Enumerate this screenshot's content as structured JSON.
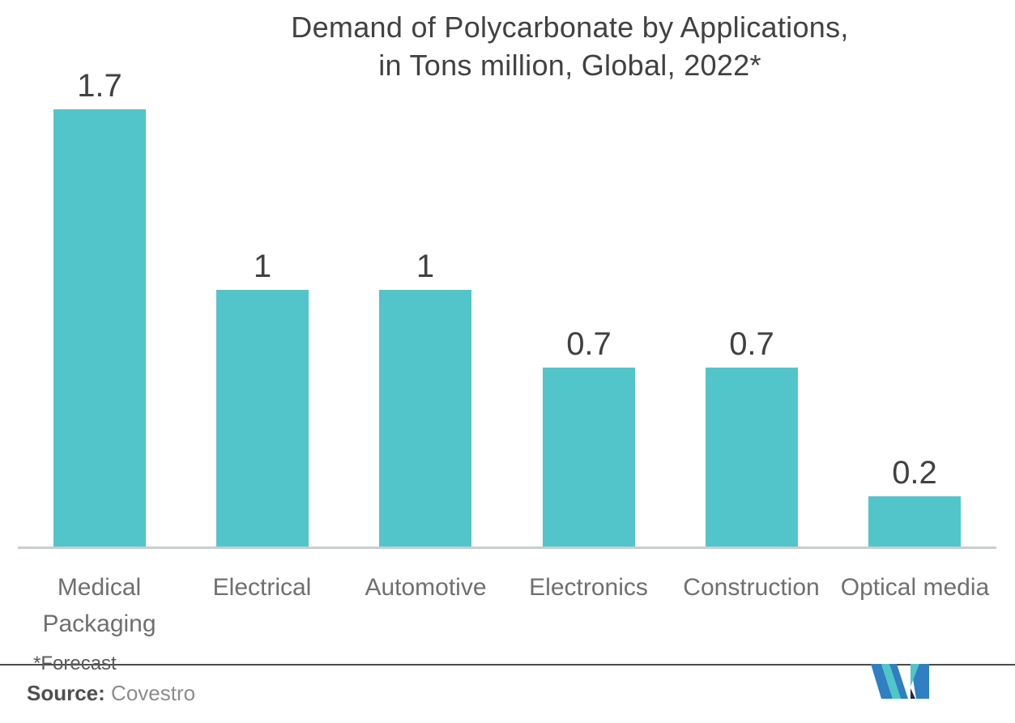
{
  "title": {
    "line1": "Demand of Polycarbonate by Applications,",
    "line2": "in Tons million, Global, 2022*"
  },
  "chart_data": {
    "type": "bar",
    "title": "Demand of Polycarbonate by Applications, in Tons million, Global, 2022*",
    "categories": [
      "Medical Packaging",
      "Electrical",
      "Automotive",
      "Electronics",
      "Construction",
      "Optical media"
    ],
    "categories_display": [
      [
        "Medical",
        "Packaging"
      ],
      [
        "Electrical"
      ],
      [
        "Automotive"
      ],
      [
        "Electronics"
      ],
      [
        "Construction"
      ],
      [
        "Optical media"
      ]
    ],
    "values": [
      1.7,
      1,
      1,
      0.7,
      0.7,
      0.2
    ],
    "value_labels": [
      "1.7",
      "1",
      "1",
      "0.7",
      "0.7",
      "0.2"
    ],
    "xlabel": "",
    "ylabel": "",
    "ylim": [
      0,
      1.9
    ],
    "grid": false,
    "legend": false,
    "bar_color": "#52C5CB",
    "value_label_color": "#414141",
    "category_label_color": "#6F6F6F",
    "axis_line_color": "#C9CDCE"
  },
  "footer": {
    "forecast_note": "*Forecast",
    "source_label": "Source:",
    "source_value": " Covestro"
  },
  "logo": {
    "name": "mordor-intelligence-m-logo",
    "colors": {
      "blue": "#2F7FC2",
      "teal": "#4FC6C7",
      "navy": "#1C2B50"
    }
  },
  "colors": {
    "background": "#FFFFFF",
    "title_text": "#414141",
    "divider_line": "#4B4B4B",
    "forecast_text": "#5A5A5A",
    "source_label_text": "#4F4F4F",
    "source_value_text": "#8C8C8C"
  }
}
